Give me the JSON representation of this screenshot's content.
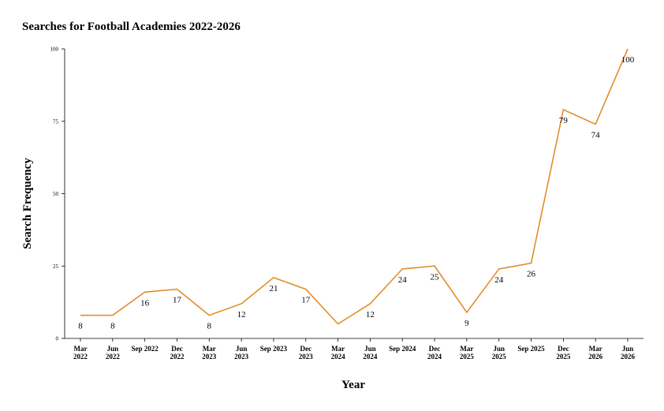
{
  "chart_data": {
    "type": "line",
    "title": "Searches for Football Academies 2022-2026",
    "xlabel": "Year",
    "ylabel": "Search Frequency",
    "categories": [
      [
        "Mar",
        "2022"
      ],
      [
        "Jun",
        "2022"
      ],
      [
        "Sep 2022"
      ],
      [
        "Dec",
        "2022"
      ],
      [
        "Mar",
        "2023"
      ],
      [
        "Jun",
        "2023"
      ],
      [
        "Sep 2023"
      ],
      [
        "Dec",
        "2023"
      ],
      [
        "Mar",
        "2024"
      ],
      [
        "Jun",
        "2024"
      ],
      [
        "Sep 2024"
      ],
      [
        "Dec",
        "2024"
      ],
      [
        "Mar",
        "2025"
      ],
      [
        "Jun",
        "2025"
      ],
      [
        "Sep 2025"
      ],
      [
        "Dec",
        "2025"
      ],
      [
        "Mar",
        "2026"
      ],
      [
        "Jun",
        "2026"
      ]
    ],
    "series": [
      {
        "values": [
          8,
          8,
          16,
          17,
          8,
          12,
          21,
          17,
          5,
          12,
          24,
          25,
          9,
          24,
          26,
          79,
          74,
          100
        ],
        "color": "#e08e2b"
      }
    ],
    "data_labels": [
      "8",
      "8",
      "16",
      "17",
      "8",
      "12",
      "21",
      "17",
      "",
      "12",
      "24",
      "25",
      "9",
      "24",
      "26",
      "79",
      "74",
      "100"
    ],
    "yticks": [
      0,
      25,
      50,
      75,
      100
    ],
    "ylim": [
      0,
      100
    ],
    "grid": false,
    "legend": "none"
  }
}
